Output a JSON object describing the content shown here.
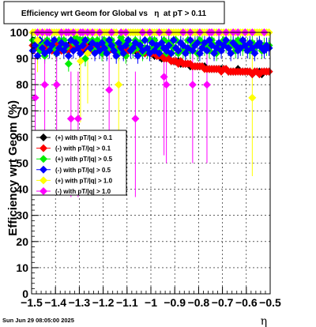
{
  "chart_data": {
    "type": "scatter",
    "title": "Efficiency wrt Geom for Global vs   η  at pT > 0.11",
    "xlabel": "η",
    "ylabel": "Efficiency wrt Geom (%)",
    "xlim": [
      -1.5,
      -0.5
    ],
    "ylim": [
      0,
      100
    ],
    "x_ticks": [
      "−1.5",
      "−1.4",
      "−1.3",
      "−1.2",
      "−1.1",
      "−1",
      "−0.9",
      "−0.8",
      "−0.7",
      "−0.6",
      "−0.5"
    ],
    "y_ticks": [
      "0",
      "10",
      "20",
      "30",
      "40",
      "50",
      "60",
      "70",
      "80",
      "90",
      "100"
    ],
    "grid": true,
    "legend_position": "left-middle",
    "timestamp": "Sun Jun 29 08:05:00 2025",
    "x": [
      -1.495,
      -1.485,
      -1.475,
      -1.465,
      -1.455,
      -1.445,
      -1.435,
      -1.425,
      -1.415,
      -1.405,
      -1.395,
      -1.385,
      -1.375,
      -1.365,
      -1.355,
      -1.345,
      -1.335,
      -1.325,
      -1.315,
      -1.305,
      -1.295,
      -1.285,
      -1.275,
      -1.265,
      -1.255,
      -1.245,
      -1.235,
      -1.225,
      -1.215,
      -1.205,
      -1.195,
      -1.185,
      -1.175,
      -1.165,
      -1.155,
      -1.145,
      -1.135,
      -1.125,
      -1.115,
      -1.105,
      -1.095,
      -1.085,
      -1.075,
      -1.065,
      -1.055,
      -1.045,
      -1.035,
      -1.025,
      -1.015,
      -1.005,
      -0.995,
      -0.985,
      -0.975,
      -0.965,
      -0.955,
      -0.945,
      -0.935,
      -0.925,
      -0.915,
      -0.905,
      -0.895,
      -0.885,
      -0.875,
      -0.865,
      -0.855,
      -0.845,
      -0.835,
      -0.825,
      -0.815,
      -0.805,
      -0.795,
      -0.785,
      -0.775,
      -0.765,
      -0.755,
      -0.745,
      -0.735,
      -0.725,
      -0.715,
      -0.705,
      -0.695,
      -0.685,
      -0.675,
      -0.665,
      -0.655,
      -0.645,
      -0.635,
      -0.625,
      -0.615,
      -0.605,
      -0.595,
      -0.585,
      -0.575,
      -0.565,
      -0.555,
      -0.545,
      -0.535,
      -0.525,
      -0.515,
      -0.505
    ],
    "series": [
      {
        "name": "(+) with pT/|q| > 0.1",
        "color": "#000000",
        "y": [
          95,
          94,
          95,
          96,
          94,
          95,
          93,
          94,
          95,
          94,
          93,
          95,
          94,
          93,
          95,
          94,
          96,
          93,
          94,
          95,
          94,
          95,
          93,
          94,
          95,
          94,
          93,
          95,
          94,
          95,
          94,
          93,
          94,
          95,
          93,
          94,
          95,
          94,
          93,
          94,
          94,
          93,
          94,
          93,
          94,
          93,
          93,
          92,
          93,
          92,
          92,
          91,
          91,
          91,
          90,
          90,
          90,
          90,
          89,
          89,
          89,
          89,
          88,
          88,
          88,
          88,
          87,
          87,
          87,
          87,
          87,
          87,
          87,
          86,
          86,
          86,
          86,
          86,
          86,
          86,
          86,
          86,
          85,
          85,
          85,
          85,
          86,
          85,
          85,
          85,
          85,
          85,
          84,
          85,
          85,
          85,
          84,
          85,
          85,
          85
        ]
      },
      {
        "name": "(-) with pT/|q| > 0.1",
        "color": "#ff0000",
        "y": [
          95,
          94,
          94,
          95,
          93,
          94,
          95,
          94,
          93,
          94,
          95,
          94,
          93,
          95,
          94,
          93,
          95,
          94,
          94,
          95,
          93,
          94,
          95,
          94,
          93,
          94,
          95,
          94,
          93,
          94,
          95,
          94,
          93,
          94,
          93,
          94,
          95,
          94,
          93,
          94,
          93,
          94,
          93,
          94,
          93,
          93,
          93,
          92,
          93,
          92,
          92,
          92,
          91,
          91,
          91,
          90,
          90,
          90,
          89,
          89,
          89,
          88,
          89,
          88,
          88,
          88,
          88,
          87,
          87,
          87,
          87,
          87,
          86,
          86,
          86,
          86,
          86,
          86,
          86,
          85,
          86,
          86,
          85,
          85,
          85,
          85,
          85,
          85,
          85,
          85,
          85,
          85,
          84,
          85,
          85,
          84,
          85,
          85,
          85,
          85
        ]
      },
      {
        "name": "(+) with pT/|q| > 0.5",
        "color": "#00ee00",
        "y": [
          97,
          96,
          95,
          93,
          96,
          91,
          97,
          95,
          96,
          94,
          92,
          97,
          95,
          97,
          94,
          88,
          97,
          96,
          98,
          95,
          97,
          97,
          90,
          97,
          94,
          97,
          93,
          97,
          96,
          92,
          97,
          95,
          94,
          97,
          95,
          93,
          92,
          98,
          96,
          91,
          97,
          95,
          93,
          97,
          94,
          96,
          92,
          94,
          93,
          97,
          94,
          97,
          95,
          93,
          95,
          97,
          92,
          96,
          95,
          94,
          97,
          92,
          96,
          93,
          94,
          97,
          93,
          95,
          96,
          92,
          97,
          96,
          94,
          95,
          93,
          97,
          95,
          92,
          95,
          94,
          97,
          95,
          94,
          96,
          95,
          93,
          97,
          96,
          94,
          95,
          95,
          93,
          96,
          94,
          95,
          96,
          93,
          95,
          94,
          95
        ]
      },
      {
        "name": "(-) with pT/|q| > 0.5",
        "color": "#0000ff",
        "y": [
          93,
          95,
          91,
          97,
          94,
          92,
          96,
          93,
          95,
          97,
          92,
          94,
          96,
          93,
          95,
          91,
          97,
          93,
          96,
          94,
          92,
          95,
          97,
          93,
          94,
          96,
          92,
          95,
          93,
          96,
          94,
          92,
          97,
          95,
          93,
          91,
          96,
          94,
          92,
          95,
          97,
          93,
          94,
          96,
          91,
          95,
          93,
          97,
          94,
          92,
          96,
          93,
          95,
          92,
          96,
          94,
          93,
          95,
          92,
          97,
          94,
          93,
          96,
          95,
          92,
          94,
          97,
          93,
          95,
          96,
          92,
          94,
          96,
          93,
          97,
          95,
          92,
          94,
          96,
          93,
          95,
          97,
          94,
          92,
          96,
          95,
          93,
          94,
          97,
          95,
          93,
          96,
          94,
          92,
          95,
          96,
          94,
          93,
          95,
          94
        ]
      },
      {
        "name": "(+) with pT/|q| > 1.0",
        "color": "#ffff00",
        "y": [
          100,
          100,
          97,
          100,
          100,
          100,
          100,
          100,
          100,
          100,
          100,
          100,
          100,
          100,
          100,
          100,
          100,
          100,
          100,
          100,
          89,
          100,
          100,
          92,
          100,
          100,
          100,
          100,
          100,
          100,
          100,
          100,
          100,
          100,
          100,
          100,
          80,
          100,
          100,
          100,
          100,
          100,
          100,
          100,
          100,
          100,
          100,
          100,
          100,
          100,
          100,
          100,
          100,
          100,
          100,
          100,
          100,
          100,
          100,
          100,
          100,
          100,
          100,
          100,
          100,
          100,
          100,
          100,
          100,
          100,
          100,
          100,
          100,
          100,
          100,
          100,
          100,
          100,
          100,
          100,
          100,
          100,
          100,
          100,
          100,
          100,
          100,
          100,
          100,
          100,
          100,
          100,
          75,
          100,
          100,
          100,
          100,
          100,
          100,
          100
        ]
      },
      {
        "name": "(-) with pT/|q| > 1.0",
        "color": "#ff00ff",
        "y": [
          null,
          75,
          100,
          null,
          100,
          80,
          100,
          100,
          null,
          null,
          80,
          null,
          100,
          null,
          100,
          100,
          67,
          100,
          null,
          67,
          100,
          100,
          null,
          100,
          null,
          100,
          null,
          null,
          100,
          null,
          null,
          null,
          78,
          100,
          null,
          null,
          null,
          100,
          null,
          100,
          null,
          null,
          null,
          67,
          null,
          null,
          100,
          null,
          null,
          100,
          null,
          null,
          null,
          100,
          null,
          83,
          80,
          100,
          null,
          null,
          null,
          null,
          null,
          100,
          null,
          null,
          100,
          80,
          null,
          null,
          100,
          null,
          null,
          80,
          100,
          100,
          null,
          null,
          100,
          null,
          null,
          100,
          null,
          null,
          100,
          null,
          100,
          null,
          null,
          100,
          null,
          null,
          100,
          null,
          null,
          null,
          null,
          100,
          null,
          null
        ]
      }
    ]
  }
}
